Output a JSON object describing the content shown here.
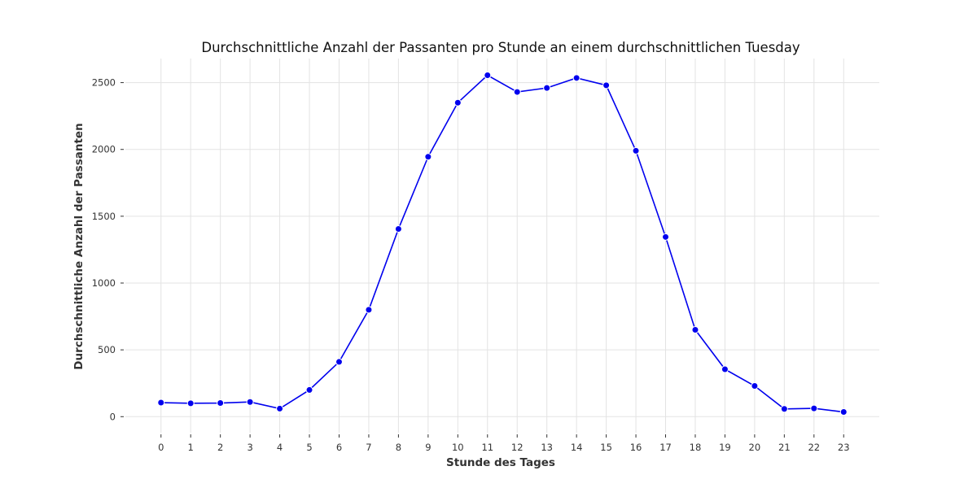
{
  "chart_data": {
    "type": "line",
    "title": "Durchschnittliche Anzahl der Passanten pro Stunde an einem durchschnittlichen Tuesday",
    "xlabel": "Stunde des Tages",
    "ylabel": "Durchschnittliche Anzahl der Passanten",
    "x": [
      0,
      1,
      2,
      3,
      4,
      5,
      6,
      7,
      8,
      9,
      10,
      11,
      12,
      13,
      14,
      15,
      16,
      17,
      18,
      19,
      20,
      21,
      22,
      23
    ],
    "xticks": [
      "0",
      "1",
      "2",
      "3",
      "4",
      "5",
      "6",
      "7",
      "8",
      "9",
      "10",
      "11",
      "12",
      "13",
      "14",
      "15",
      "16",
      "17",
      "18",
      "19",
      "20",
      "21",
      "22",
      "23"
    ],
    "yticks": [
      0,
      500,
      1000,
      1500,
      2000,
      2500
    ],
    "xlim": [
      -1.2,
      24.2
    ],
    "ylim": [
      -120,
      2680
    ],
    "grid": true,
    "legend": "none",
    "series": [
      {
        "color": "#0000ee",
        "values": [
          105,
          100,
          102,
          110,
          60,
          200,
          410,
          800,
          1405,
          1945,
          2350,
          2555,
          2430,
          2460,
          2535,
          2480,
          1990,
          1345,
          650,
          355,
          230,
          58,
          62,
          35
        ]
      }
    ]
  }
}
